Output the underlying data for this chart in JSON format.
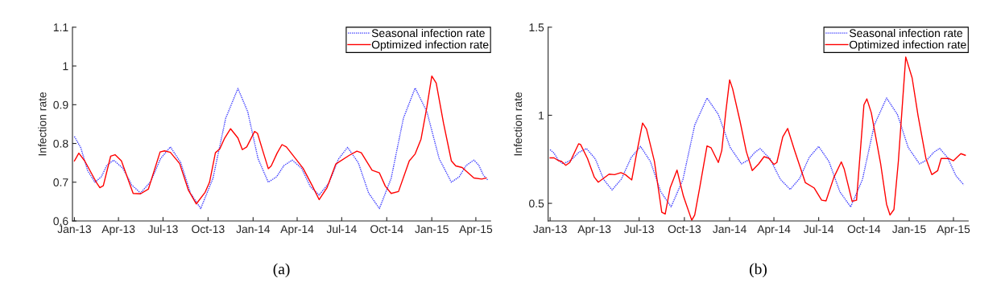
{
  "chart_data": [
    {
      "type": "line",
      "ylabel": "Infection rate",
      "annotations": [
        "(a)"
      ],
      "legend": "top right",
      "grid": false,
      "marker": "none",
      "xlim": [
        "2012-12-28",
        "2015-05-01"
      ],
      "ylim": [
        0.6,
        1.1
      ],
      "yticks": [
        0.6,
        0.7,
        0.8,
        0.9,
        1,
        1.1
      ],
      "xticks": [
        {
          "value": "2013-01-01",
          "label": "Jan-13"
        },
        {
          "value": "2013-04-01",
          "label": "Apr-13"
        },
        {
          "value": "2013-07-01",
          "label": "Jul-13"
        },
        {
          "value": "2013-10-01",
          "label": "Oct-13"
        },
        {
          "value": "2014-01-01",
          "label": "Jan-14"
        },
        {
          "value": "2014-04-01",
          "label": "Apr-14"
        },
        {
          "value": "2014-07-01",
          "label": "Jul-14"
        },
        {
          "value": "2014-10-01",
          "label": "Oct-14"
        },
        {
          "value": "2015-01-01",
          "label": "Jan-15"
        },
        {
          "value": "2015-04-01",
          "label": "Apr-15"
        }
      ],
      "series": [
        {
          "name": "Seasonal infection rate",
          "color": "#3c3cff",
          "line_style": "dotted",
          "x": [
            "2013-01-01",
            "2013-01-14",
            "2013-01-28",
            "2013-02-12",
            "2013-02-25",
            "2013-03-08",
            "2013-03-22",
            "2013-04-10",
            "2013-04-28",
            "2013-05-16",
            "2013-06-06",
            "2013-06-26",
            "2013-07-16",
            "2013-08-06",
            "2013-08-26",
            "2013-09-16",
            "2013-10-11",
            "2013-11-06",
            "2013-12-01",
            "2013-12-21",
            "2014-01-11",
            "2014-02-01",
            "2014-02-18",
            "2014-03-05",
            "2014-03-22",
            "2014-04-10",
            "2014-04-28",
            "2014-05-16",
            "2014-06-05",
            "2014-06-24",
            "2014-07-13",
            "2014-08-04",
            "2014-08-25",
            "2014-09-16",
            "2014-10-10",
            "2014-11-04",
            "2014-11-28",
            "2014-12-22",
            "2015-01-16",
            "2015-02-10",
            "2015-02-26",
            "2015-03-12",
            "2015-03-28",
            "2015-04-07",
            "2015-04-16",
            "2015-04-25"
          ],
          "values": [
            0.818,
            0.789,
            0.73,
            0.7,
            0.714,
            0.743,
            0.757,
            0.736,
            0.693,
            0.672,
            0.702,
            0.761,
            0.791,
            0.751,
            0.672,
            0.632,
            0.71,
            0.865,
            0.942,
            0.882,
            0.761,
            0.7,
            0.714,
            0.743,
            0.757,
            0.736,
            0.688,
            0.667,
            0.698,
            0.759,
            0.79,
            0.75,
            0.672,
            0.632,
            0.71,
            0.865,
            0.943,
            0.882,
            0.761,
            0.7,
            0.714,
            0.743,
            0.757,
            0.744,
            0.719,
            0.706
          ]
        },
        {
          "name": "Optimized infection rate",
          "color": "#ff0000",
          "line_style": "solid",
          "x": [
            "2013-01-01",
            "2013-01-10",
            "2013-01-22",
            "2013-02-16",
            "2013-02-22",
            "2013-03-01",
            "2013-03-16",
            "2013-03-25",
            "2013-04-07",
            "2013-05-01",
            "2013-05-16",
            "2013-06-01",
            "2013-06-25",
            "2013-07-04",
            "2013-07-16",
            "2013-08-04",
            "2013-08-22",
            "2013-09-07",
            "2013-09-25",
            "2013-10-04",
            "2013-10-16",
            "2013-10-25",
            "2013-11-04",
            "2013-11-16",
            "2013-12-01",
            "2013-12-10",
            "2013-12-19",
            "2014-01-04",
            "2014-01-10",
            "2014-01-22",
            "2014-02-01",
            "2014-02-07",
            "2014-02-19",
            "2014-03-01",
            "2014-03-10",
            "2014-03-28",
            "2014-04-13",
            "2014-05-01",
            "2014-05-16",
            "2014-06-01",
            "2014-06-19",
            "2014-07-16",
            "2014-08-01",
            "2014-08-10",
            "2014-09-01",
            "2014-09-16",
            "2014-09-28",
            "2014-10-10",
            "2014-10-25",
            "2014-11-16",
            "2014-11-28",
            "2014-12-10",
            "2014-12-22",
            "2015-01-01",
            "2015-01-10",
            "2015-01-25",
            "2015-02-10",
            "2015-02-19",
            "2015-03-04",
            "2015-03-28",
            "2015-04-13",
            "2015-04-22"
          ],
          "values": [
            0.755,
            0.775,
            0.755,
            0.697,
            0.686,
            0.691,
            0.767,
            0.771,
            0.755,
            0.671,
            0.67,
            0.682,
            0.778,
            0.781,
            0.777,
            0.748,
            0.679,
            0.644,
            0.674,
            0.7,
            0.776,
            0.786,
            0.814,
            0.838,
            0.814,
            0.784,
            0.791,
            0.831,
            0.826,
            0.776,
            0.735,
            0.742,
            0.775,
            0.797,
            0.791,
            0.762,
            0.736,
            0.693,
            0.655,
            0.686,
            0.747,
            0.769,
            0.78,
            0.776,
            0.731,
            0.724,
            0.69,
            0.671,
            0.676,
            0.755,
            0.773,
            0.811,
            0.894,
            0.974,
            0.956,
            0.852,
            0.755,
            0.742,
            0.738,
            0.711,
            0.708,
            0.711
          ]
        }
      ]
    },
    {
      "type": "line",
      "ylabel": "Infection rate",
      "annotations": [
        "(b)"
      ],
      "legend": "top right",
      "grid": false,
      "marker": "none",
      "xlim": [
        "2012-12-28",
        "2015-05-01"
      ],
      "ylim": [
        0.4,
        1.5
      ],
      "yticks": [
        0.5,
        1,
        1.5
      ],
      "xticks": [
        {
          "value": "2013-01-01",
          "label": "Jan-13"
        },
        {
          "value": "2013-04-01",
          "label": "Apr-13"
        },
        {
          "value": "2013-07-01",
          "label": "Jul-13"
        },
        {
          "value": "2013-10-01",
          "label": "Oct-13"
        },
        {
          "value": "2014-01-01",
          "label": "Jan-14"
        },
        {
          "value": "2014-04-01",
          "label": "Apr-14"
        },
        {
          "value": "2014-07-01",
          "label": "Jul-14"
        },
        {
          "value": "2014-10-01",
          "label": "Oct-14"
        },
        {
          "value": "2015-01-01",
          "label": "Jan-15"
        },
        {
          "value": "2015-04-01",
          "label": "Apr-15"
        }
      ],
      "series": [
        {
          "name": "Seasonal infection rate",
          "color": "#3c3cff",
          "line_style": "dotted",
          "x": [
            "2013-01-01",
            "2013-01-09",
            "2013-01-18",
            "2013-01-27",
            "2013-02-13",
            "2013-02-28",
            "2013-03-16",
            "2013-04-03",
            "2013-04-20",
            "2013-05-07",
            "2013-05-26",
            "2013-06-15",
            "2013-07-04",
            "2013-07-24",
            "2013-08-14",
            "2013-09-04",
            "2013-09-28",
            "2013-10-22",
            "2013-11-16",
            "2013-12-09",
            "2014-01-02",
            "2014-01-25",
            "2014-02-08",
            "2014-02-21",
            "2014-03-04",
            "2014-03-24",
            "2014-04-14",
            "2014-05-04",
            "2014-05-23",
            "2014-06-12",
            "2014-07-01",
            "2014-07-22",
            "2014-08-13",
            "2014-09-04",
            "2014-09-28",
            "2014-10-22",
            "2014-11-16",
            "2014-12-08",
            "2014-12-30",
            "2015-01-22",
            "2015-02-06",
            "2015-02-20",
            "2015-03-04",
            "2015-03-20",
            "2015-04-06",
            "2015-04-22"
          ],
          "values": [
            0.805,
            0.785,
            0.744,
            0.724,
            0.746,
            0.789,
            0.811,
            0.752,
            0.635,
            0.576,
            0.638,
            0.761,
            0.823,
            0.737,
            0.566,
            0.48,
            0.635,
            0.944,
            1.098,
            1.005,
            0.818,
            0.724,
            0.746,
            0.789,
            0.811,
            0.753,
            0.637,
            0.579,
            0.64,
            0.762,
            0.823,
            0.737,
            0.566,
            0.48,
            0.635,
            0.944,
            1.098,
            1.005,
            0.817,
            0.724,
            0.746,
            0.79,
            0.812,
            0.76,
            0.657,
            0.605
          ]
        },
        {
          "name": "Optimized infection rate",
          "color": "#ff0000",
          "line_style": "solid",
          "x": [
            "2013-01-01",
            "2013-01-09",
            "2013-01-18",
            "2013-01-24",
            "2013-02-02",
            "2013-02-10",
            "2013-02-28",
            "2013-03-04",
            "2013-03-18",
            "2013-04-01",
            "2013-04-09",
            "2013-05-01",
            "2013-05-12",
            "2013-05-25",
            "2013-06-03",
            "2013-06-16",
            "2013-06-25",
            "2013-07-08",
            "2013-07-16",
            "2013-08-01",
            "2013-08-16",
            "2013-08-23",
            "2013-09-02",
            "2013-09-16",
            "2013-09-29",
            "2013-10-16",
            "2013-10-22",
            "2013-11-01",
            "2013-11-16",
            "2013-11-24",
            "2013-12-09",
            "2013-12-16",
            "2013-12-24",
            "2014-01-01",
            "2014-01-07",
            "2014-01-22",
            "2014-02-04",
            "2014-02-16",
            "2014-03-01",
            "2014-03-12",
            "2014-03-22",
            "2014-04-01",
            "2014-04-07",
            "2014-04-19",
            "2014-04-29",
            "2014-05-13",
            "2014-06-04",
            "2014-06-22",
            "2014-07-07",
            "2014-07-16",
            "2014-08-01",
            "2014-08-16",
            "2014-08-22",
            "2014-09-07",
            "2014-09-16",
            "2014-10-01",
            "2014-10-07",
            "2014-10-16",
            "2014-11-04",
            "2014-11-16",
            "2014-11-23",
            "2014-12-01",
            "2014-12-10",
            "2014-12-25",
            "2015-01-07",
            "2015-01-19",
            "2015-02-04",
            "2015-02-16",
            "2015-02-28",
            "2015-03-07",
            "2015-03-22",
            "2015-04-01",
            "2015-04-16",
            "2015-04-25"
          ],
          "values": [
            0.758,
            0.758,
            0.742,
            0.739,
            0.716,
            0.732,
            0.838,
            0.834,
            0.755,
            0.648,
            0.62,
            0.666,
            0.663,
            0.674,
            0.663,
            0.633,
            0.77,
            0.956,
            0.922,
            0.739,
            0.45,
            0.439,
            0.587,
            0.689,
            0.541,
            0.404,
            0.434,
            0.587,
            0.826,
            0.816,
            0.732,
            0.8,
            1.014,
            1.201,
            1.151,
            0.968,
            0.793,
            0.686,
            0.724,
            0.765,
            0.755,
            0.721,
            0.732,
            0.877,
            0.925,
            0.8,
            0.617,
            0.587,
            0.518,
            0.514,
            0.648,
            0.735,
            0.694,
            0.511,
            0.518,
            1.059,
            1.093,
            1.014,
            0.724,
            0.495,
            0.434,
            0.465,
            0.739,
            1.331,
            1.212,
            0.998,
            0.755,
            0.663,
            0.686,
            0.755,
            0.755,
            0.742,
            0.782,
            0.773
          ]
        }
      ]
    }
  ]
}
